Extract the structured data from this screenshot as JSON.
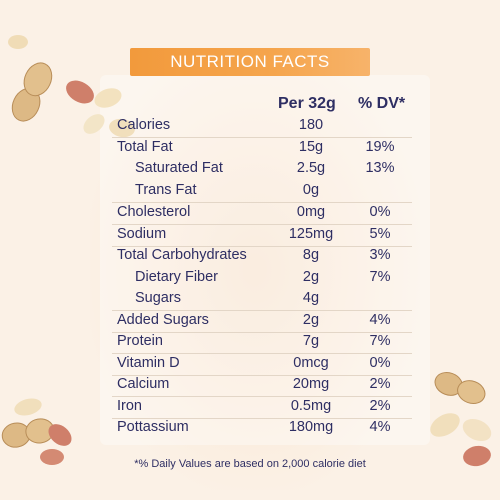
{
  "header": {
    "title": "NUTRITION FACTS"
  },
  "columns": {
    "per": "Per 32g",
    "dv": "% DV*"
  },
  "rows": [
    {
      "label": "Calories",
      "amount": "180",
      "dv": ""
    },
    {
      "label": "Total Fat",
      "amount": "15g",
      "dv": "19%"
    },
    {
      "label": "Saturated Fat",
      "amount": "2.5g",
      "dv": "13%"
    },
    {
      "label": "Trans Fat",
      "amount": "0g",
      "dv": ""
    },
    {
      "label": "Cholesterol",
      "amount": "0mg",
      "dv": "0%"
    },
    {
      "label": "Sodium",
      "amount": "125mg",
      "dv": "5%"
    },
    {
      "label": "Total Carbohydrates",
      "amount": "8g",
      "dv": "3%"
    },
    {
      "label": "Dietary Fiber",
      "amount": "2g",
      "dv": "7%"
    },
    {
      "label": "Sugars",
      "amount": "4g",
      "dv": ""
    },
    {
      "label": "Added Sugars",
      "amount": "2g",
      "dv": "4%"
    },
    {
      "label": "Protein",
      "amount": "7g",
      "dv": "7%"
    },
    {
      "label": "Vitamin D",
      "amount": "0mcg",
      "dv": "0%"
    },
    {
      "label": "Calcium",
      "amount": "20mg",
      "dv": "2%"
    },
    {
      "label": "Iron",
      "amount": "0.5mg",
      "dv": "2%"
    },
    {
      "label": "Pottassium",
      "amount": "180mg",
      "dv": "4%"
    }
  ],
  "footnote": "*% Daily Values are based on 2,000 calorie diet",
  "colors": {
    "accent": "#f29a3c",
    "text": "#2e2e63",
    "background": "#fbf1e6"
  }
}
